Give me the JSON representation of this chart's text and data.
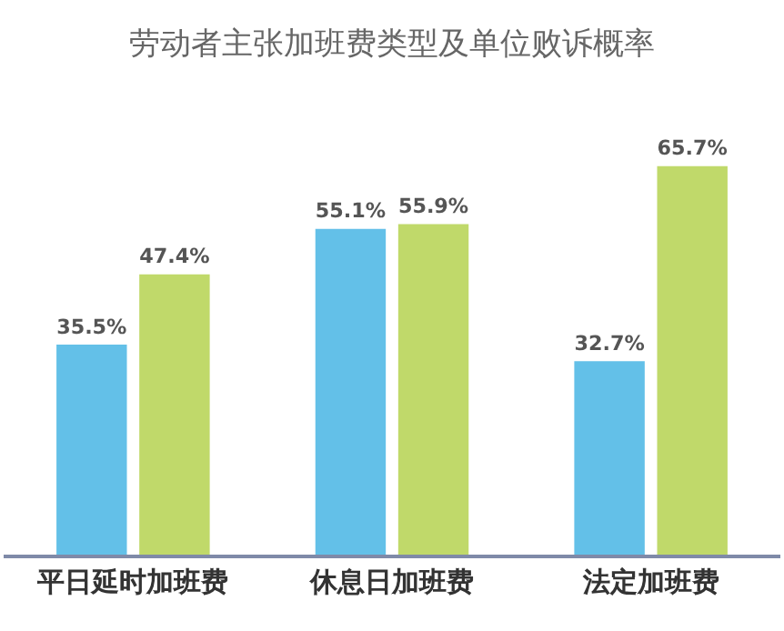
{
  "chart_data": {
    "type": "bar",
    "title": "劳动者主张加班费类型及单位败诉概率",
    "categories": [
      "平日延时加班费",
      "休息日加班费",
      "法定加班费"
    ],
    "series": [
      {
        "color": "#63c0e8",
        "values": [
          35.5,
          55.1,
          32.7
        ],
        "value_labels": [
          "35.5%",
          "55.1%",
          "32.7%"
        ]
      },
      {
        "color": "#c0d96a",
        "values": [
          47.4,
          55.9,
          65.7
        ],
        "value_labels": [
          "47.4%",
          "55.9%",
          "65.7%"
        ]
      }
    ]
  }
}
